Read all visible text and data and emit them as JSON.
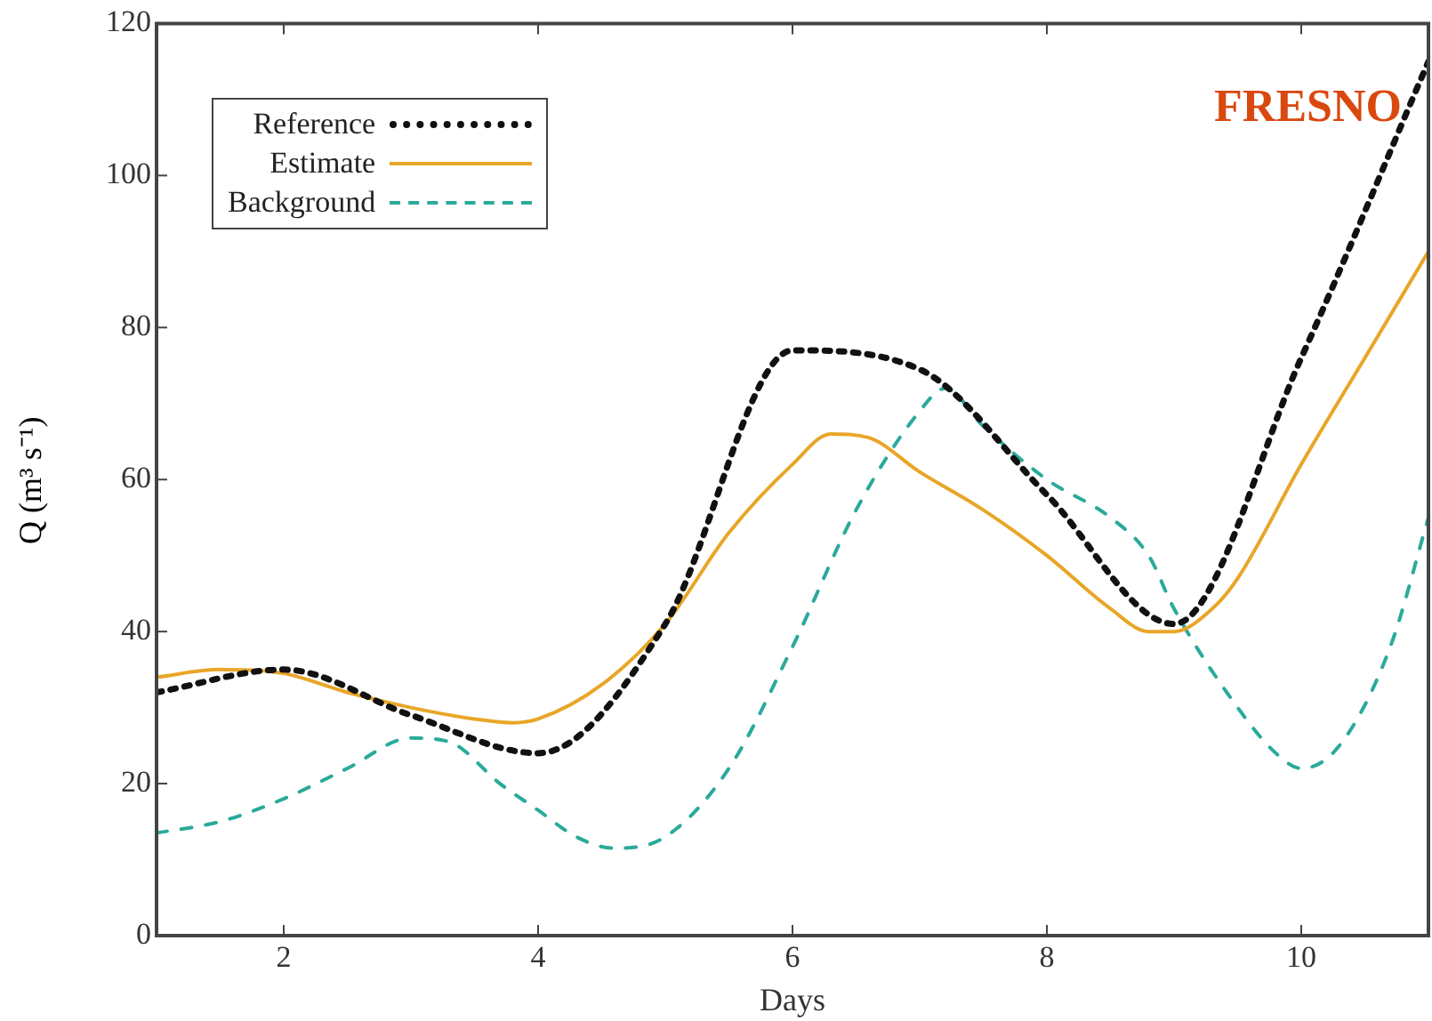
{
  "chart_data": {
    "type": "line",
    "xlabel": "Days",
    "ylabel": "Q (m³ s⁻¹)",
    "annotations": [
      "FRESNO"
    ],
    "xlim": [
      1,
      11
    ],
    "xticks": [
      2,
      4,
      6,
      8,
      10
    ],
    "ylim": [
      0,
      120
    ],
    "yticks": [
      0,
      20,
      40,
      60,
      80,
      100,
      120
    ],
    "grid": false,
    "legend": "top left",
    "marker": "none",
    "series": [
      {
        "name": "Reference",
        "color": "#111111",
        "line_style": "dotted",
        "x": [
          1,
          2,
          3,
          4,
          5,
          6,
          7,
          8,
          9,
          10,
          11
        ],
        "values": [
          32,
          35,
          29,
          24,
          41,
          77,
          74.5,
          58,
          41,
          76,
          115
        ]
      },
      {
        "name": "Estimate",
        "color": "#e8a628",
        "line_style": "solid",
        "x": [
          1,
          1.5,
          2,
          2.5,
          3,
          3.5,
          3.8,
          4,
          4.5,
          5,
          5.5,
          6,
          6.3,
          6.6,
          7,
          7.5,
          8,
          8.5,
          8.8,
          9,
          9.3,
          9.5,
          10,
          10.5,
          11
        ],
        "values": [
          34,
          35,
          34.5,
          32,
          30,
          28.5,
          28,
          28.5,
          33,
          41,
          53,
          62,
          66,
          65.5,
          61,
          56,
          50,
          43,
          40,
          40,
          43,
          47,
          62,
          76,
          90
        ]
      },
      {
        "name": "Background",
        "color": "#2aaa9a",
        "line_style": "dashed",
        "x": [
          1,
          1.5,
          2,
          2.5,
          3,
          3.3,
          3.7,
          4,
          4.3,
          4.6,
          5,
          5.5,
          6,
          6.5,
          7,
          7.2,
          7.5,
          8,
          8.5,
          8.8,
          9,
          9.5,
          9.8,
          10,
          10.3,
          10.7,
          11
        ],
        "values": [
          13.5,
          15,
          18,
          22,
          26,
          25.5,
          20,
          16.5,
          13,
          11.5,
          13,
          22,
          38,
          56,
          69,
          72,
          67,
          60,
          55,
          50,
          43,
          30,
          24,
          22,
          25,
          38,
          55
        ]
      }
    ]
  }
}
